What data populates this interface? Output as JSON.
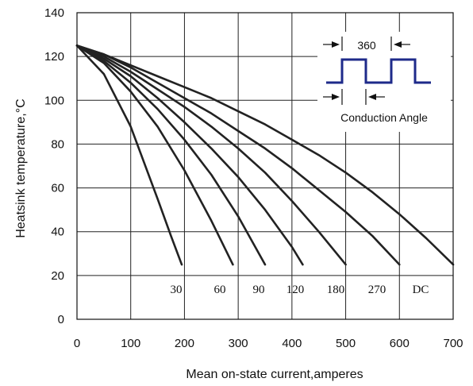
{
  "chart_data": {
    "type": "line",
    "title": "",
    "xlabel": "Mean on-state current,amperes",
    "ylabel": "Heatsink temperature,°C",
    "xlim": [
      0,
      700
    ],
    "ylim": [
      0,
      140
    ],
    "xticks": [
      0,
      100,
      200,
      300,
      400,
      500,
      600,
      700
    ],
    "yticks": [
      0,
      20,
      40,
      60,
      80,
      100,
      120,
      140
    ],
    "grid": true,
    "series": [
      {
        "name": "30",
        "x": [
          0,
          50,
          100,
          150,
          175,
          195
        ],
        "y": [
          125,
          112,
          88,
          55,
          38,
          25
        ]
      },
      {
        "name": "60",
        "x": [
          0,
          50,
          100,
          150,
          200,
          250,
          290
        ],
        "y": [
          125,
          117,
          104,
          88,
          68,
          45,
          25
        ]
      },
      {
        "name": "90",
        "x": [
          0,
          50,
          100,
          150,
          200,
          250,
          300,
          350
        ],
        "y": [
          125,
          118,
          108,
          96,
          82,
          66,
          47,
          25
        ]
      },
      {
        "name": "120",
        "x": [
          0,
          50,
          100,
          150,
          200,
          250,
          300,
          350,
          400,
          420
        ],
        "y": [
          125,
          119,
          111,
          101,
          90,
          78,
          65,
          50,
          33,
          25
        ]
      },
      {
        "name": "180",
        "x": [
          0,
          50,
          100,
          150,
          200,
          250,
          300,
          350,
          400,
          450,
          500
        ],
        "y": [
          125,
          120,
          113,
          105,
          97,
          88,
          78,
          67,
          54,
          40,
          25
        ]
      },
      {
        "name": "270",
        "x": [
          0,
          50,
          100,
          150,
          200,
          250,
          300,
          350,
          400,
          450,
          500,
          550,
          600
        ],
        "y": [
          125,
          121,
          115,
          108,
          101,
          94,
          86,
          78,
          69,
          59,
          49,
          38,
          25
        ]
      },
      {
        "name": "DC",
        "x": [
          0,
          50,
          100,
          150,
          200,
          250,
          300,
          350,
          400,
          450,
          500,
          550,
          600,
          650,
          700
        ],
        "y": [
          125,
          121,
          116,
          111,
          106,
          101,
          95,
          89,
          82,
          75,
          67,
          58,
          48,
          37,
          25
        ]
      }
    ],
    "curve_labels": [
      "30",
      "60",
      "90",
      "120",
      "180",
      "270",
      "DC"
    ],
    "inset": {
      "period_label": "360",
      "caption": "Conduction Angle"
    }
  }
}
